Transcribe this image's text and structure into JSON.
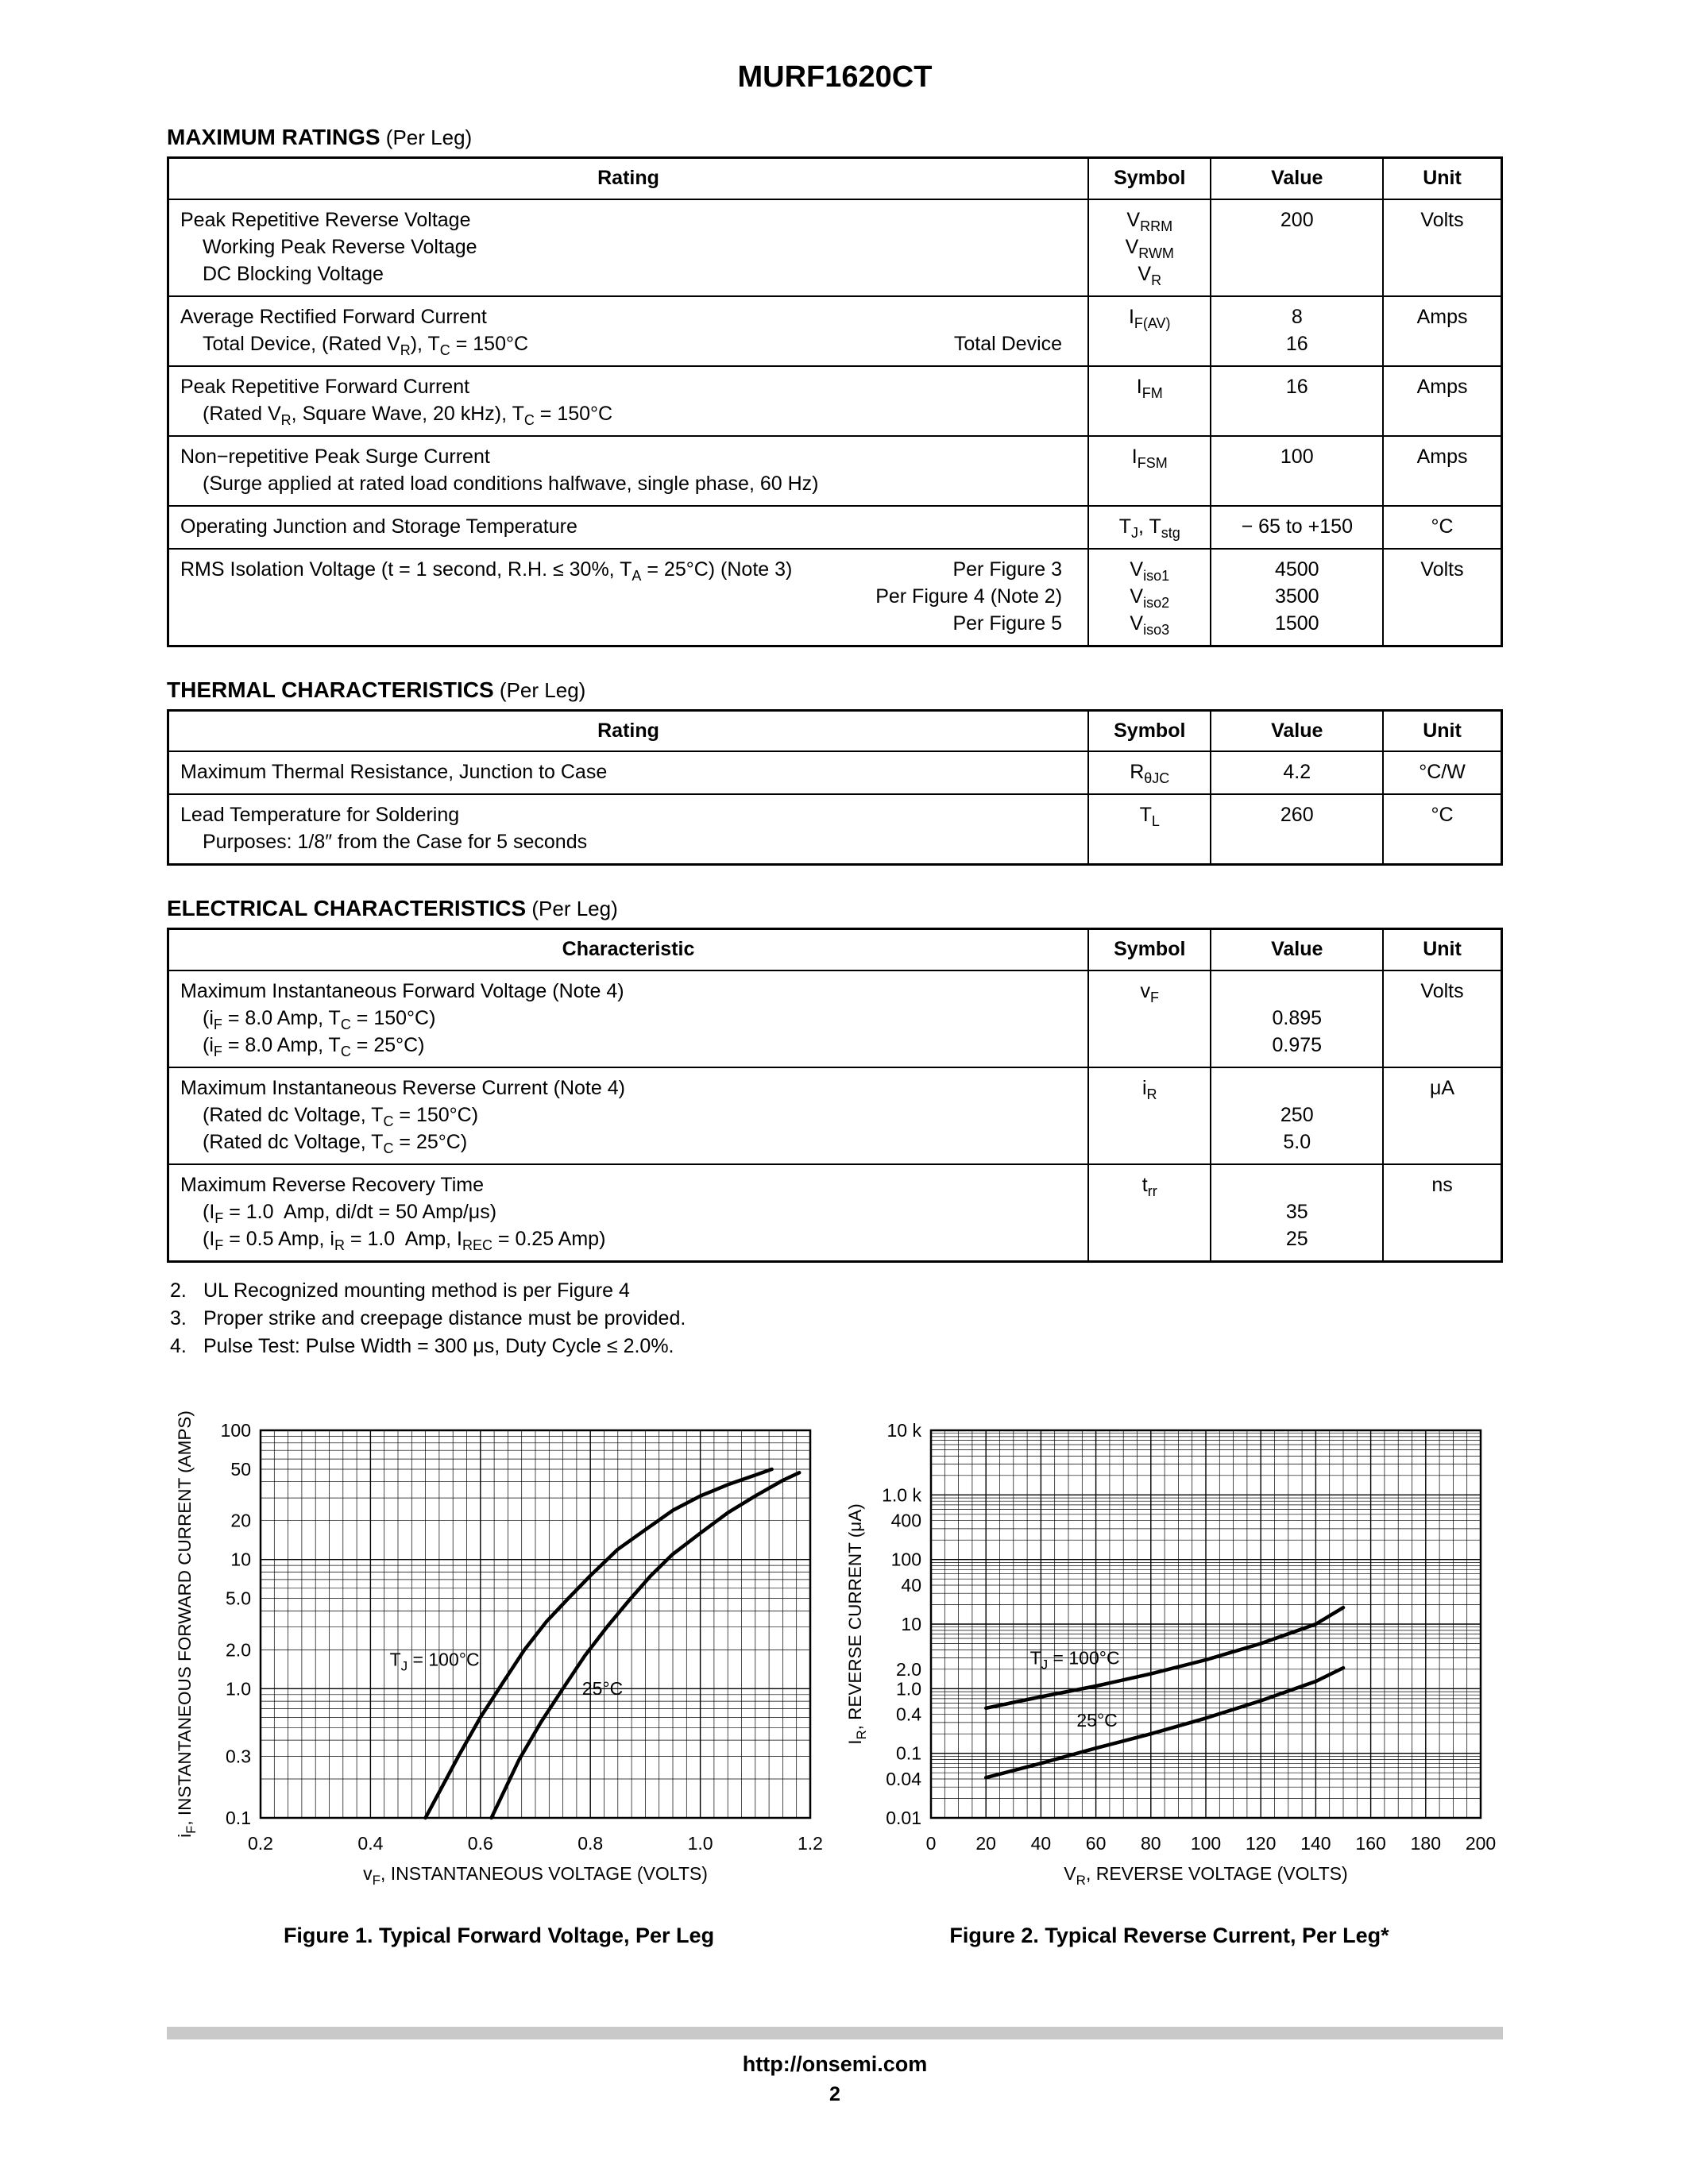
{
  "page": {
    "title": "MURF1620CT",
    "footer": {
      "url": "http://onsemi.com",
      "page": "2"
    }
  },
  "sections": {
    "max_ratings": {
      "title": "MAXIMUM RATINGS",
      "title_suffix": " (Per Leg)",
      "columns": [
        "Rating",
        "Symbol",
        "Value",
        "Unit"
      ],
      "rows": [
        {
          "rating": [
            {
              "l": "Peak Repetitive Reverse Voltage"
            },
            {
              "l": "Working Peak Reverse Voltage",
              "ind": true
            },
            {
              "l": "DC Blocking Voltage",
              "ind": true
            }
          ],
          "symbol": [
            "V<sub>RRM</sub>",
            "V<sub>RWM</sub>",
            "V<sub>R</sub>"
          ],
          "value": [
            "200"
          ],
          "unit": [
            "Volts"
          ]
        },
        {
          "rating": [
            {
              "l": "Average Rectified Forward Current"
            },
            {
              "l": "Total Device, (Rated V<sub>R</sub>), T<sub>C</sub> = 150°C",
              "ind": true,
              "r": "Total Device"
            }
          ],
          "symbol": [
            "I<sub>F(AV)</sub>"
          ],
          "value": [
            "8",
            "16"
          ],
          "unit": [
            "Amps"
          ]
        },
        {
          "rating": [
            {
              "l": "Peak Repetitive Forward Current"
            },
            {
              "l": "(Rated V<sub>R</sub>, Square Wave, 20 kHz), T<sub>C</sub> = 150°C",
              "ind": true
            }
          ],
          "symbol": [
            "I<sub>FM</sub>"
          ],
          "value": [
            "16"
          ],
          "unit": [
            "Amps"
          ]
        },
        {
          "rating": [
            {
              "l": "Non−repetitive Peak Surge Current"
            },
            {
              "l": "(Surge applied at rated load conditions halfwave, single phase, 60 Hz)",
              "ind": true
            }
          ],
          "symbol": [
            "I<sub>FSM</sub>"
          ],
          "value": [
            "100"
          ],
          "unit": [
            "Amps"
          ]
        },
        {
          "rating": [
            {
              "l": "Operating Junction and Storage Temperature"
            }
          ],
          "symbol": [
            "T<sub>J</sub>, T<sub>stg</sub>"
          ],
          "value": [
            "− 65 to +150"
          ],
          "unit": [
            "°C"
          ]
        },
        {
          "rating": [
            {
              "l": "RMS Isolation Voltage (t = 1 second, R.H. ≤ 30%, T<sub>A</sub> = 25°C) (Note 3)",
              "r": "Per Figure 3"
            },
            {
              "r": "Per Figure 4 (Note 2)"
            },
            {
              "r": "Per Figure 5"
            }
          ],
          "symbol": [
            "V<sub>iso1</sub>",
            "V<sub>iso2</sub>",
            "V<sub>iso3</sub>"
          ],
          "value": [
            "4500",
            "3500",
            "1500"
          ],
          "unit": [
            "Volts"
          ]
        }
      ]
    },
    "thermal": {
      "title": "THERMAL CHARACTERISTICS",
      "title_suffix": " (Per Leg)",
      "columns": [
        "Rating",
        "Symbol",
        "Value",
        "Unit"
      ],
      "rows": [
        {
          "rating": [
            {
              "l": "Maximum Thermal Resistance, Junction to Case"
            }
          ],
          "symbol": [
            "R<sub>θJC</sub>"
          ],
          "value": [
            "4.2"
          ],
          "unit": [
            "°C/W"
          ]
        },
        {
          "rating": [
            {
              "l": "Lead Temperature for Soldering"
            },
            {
              "l": "Purposes: 1/8″ from the Case for 5 seconds",
              "ind": true
            }
          ],
          "symbol": [
            "T<sub>L</sub>"
          ],
          "value": [
            "260"
          ],
          "unit": [
            "°C"
          ]
        }
      ]
    },
    "electrical": {
      "title": "ELECTRICAL CHARACTERISTICS",
      "title_suffix": " (Per Leg)",
      "columns": [
        "Characteristic",
        "Symbol",
        "Value",
        "Unit"
      ],
      "rows": [
        {
          "rating": [
            {
              "l": "Maximum Instantaneous Forward Voltage (Note 4)"
            },
            {
              "l": "(i<sub>F</sub> = 8.0 Amp, T<sub>C</sub> = 150°C)",
              "ind": true
            },
            {
              "l": "(i<sub>F</sub> = 8.0 Amp, T<sub>C</sub> = 25°C)",
              "ind": true
            }
          ],
          "symbol": [
            "v<sub>F</sub>"
          ],
          "value": [
            "",
            "0.895",
            "0.975"
          ],
          "unit": [
            "Volts"
          ]
        },
        {
          "rating": [
            {
              "l": "Maximum Instantaneous Reverse Current (Note 4)"
            },
            {
              "l": "(Rated dc Voltage, T<sub>C</sub> = 150°C)",
              "ind": true
            },
            {
              "l": "(Rated dc Voltage, T<sub>C</sub> = 25°C)",
              "ind": true
            }
          ],
          "symbol": [
            "i<sub>R</sub>"
          ],
          "value": [
            "",
            "250",
            "5.0"
          ],
          "unit": [
            "μA"
          ]
        },
        {
          "rating": [
            {
              "l": "Maximum Reverse Recovery Time"
            },
            {
              "l": "(I<sub>F</sub> = 1.0&nbsp; Amp, di/dt = 50 Amp/μs)",
              "ind": true
            },
            {
              "l": "(I<sub>F</sub> = 0.5 Amp, i<sub>R</sub> = 1.0&nbsp; Amp, I<sub>REC</sub> = 0.25 Amp)",
              "ind": true
            }
          ],
          "symbol": [
            "t<sub>rr</sub>"
          ],
          "value": [
            "",
            "35",
            "25"
          ],
          "unit": [
            "ns"
          ]
        }
      ]
    }
  },
  "notes": [
    {
      "num": "2.",
      "html": "UL Recognized mounting method is per Figure 4"
    },
    {
      "num": "3.",
      "html": "Proper strike and creepage distance must be provided."
    },
    {
      "num": "4.",
      "html": "Pulse Test: Pulse Width = 300 μs, Duty Cycle ≤ 2.0%."
    }
  ],
  "chart_data": [
    {
      "type": "line",
      "name": "figure-1-chart",
      "title": "Figure 1. Typical Forward Voltage, Per Leg",
      "xlabel": "vF, INSTANTANEOUS VOLTAGE (VOLTS)",
      "ylabel": "iF, INSTANTANEOUS FORWARD CURRENT (AMPS)",
      "xlabel_parts": [
        {
          "t": "v"
        },
        {
          "t": "F",
          "sub": true
        },
        {
          "t": ", INSTANTANEOUS VOLTAGE (VOLTS)"
        }
      ],
      "ylabel_parts": [
        {
          "t": "i"
        },
        {
          "t": "F",
          "sub": true
        },
        {
          "t": ", INSTANTANEOUS FORWARD CURRENT (AMPS)"
        }
      ],
      "x_scale": "linear",
      "x_range": [
        0.2,
        1.2
      ],
      "x_minor_step": 0.025,
      "x_ticks": [
        0.2,
        0.4,
        0.6,
        0.8,
        1.0,
        1.2
      ],
      "x_tick_labels": [
        "0.2",
        "0.4",
        "0.6",
        "0.8",
        "1.0",
        "1.2"
      ],
      "y_scale": "log",
      "y_range": [
        0.1,
        100
      ],
      "y_ticks": [
        100,
        50,
        20,
        10,
        5.0,
        2.0,
        1.0,
        0.3,
        0.1
      ],
      "y_tick_labels": [
        "100",
        "50",
        "20",
        "10",
        "5.0",
        "2.0",
        "1.0",
        "0.3",
        "0.1"
      ],
      "grid": true,
      "series": [
        {
          "name": "TJ = 100°C",
          "label_parts": [
            {
              "t": "T"
            },
            {
              "t": "J",
              "sub": true
            },
            {
              "t": " = 100°C"
            }
          ],
          "label_at": [
            0.435,
            1.5
          ],
          "points": [
            [
              0.5,
              0.1
            ],
            [
              0.56,
              0.3
            ],
            [
              0.6,
              0.6
            ],
            [
              0.64,
              1.1
            ],
            [
              0.68,
              2.0
            ],
            [
              0.72,
              3.3
            ],
            [
              0.76,
              5.0
            ],
            [
              0.8,
              7.5
            ],
            [
              0.85,
              12
            ],
            [
              0.9,
              17
            ],
            [
              0.95,
              24
            ],
            [
              1.0,
              31
            ],
            [
              1.05,
              38
            ],
            [
              1.1,
              45
            ],
            [
              1.13,
              50
            ]
          ]
        },
        {
          "name": "25°C",
          "label_parts": [
            {
              "t": "25°C"
            }
          ],
          "label_at": [
            0.785,
            0.9
          ],
          "points": [
            [
              0.62,
              0.1
            ],
            [
              0.67,
              0.28
            ],
            [
              0.71,
              0.55
            ],
            [
              0.75,
              1.0
            ],
            [
              0.79,
              1.8
            ],
            [
              0.83,
              3.0
            ],
            [
              0.87,
              4.8
            ],
            [
              0.91,
              7.5
            ],
            [
              0.95,
              11
            ],
            [
              1.0,
              16
            ],
            [
              1.05,
              23
            ],
            [
              1.1,
              31
            ],
            [
              1.15,
              41
            ],
            [
              1.18,
              47
            ]
          ]
        }
      ]
    },
    {
      "type": "line",
      "name": "figure-2-chart",
      "title": "Figure 2. Typical Reverse Current, Per Leg*",
      "xlabel": "VR, REVERSE VOLTAGE (VOLTS)",
      "ylabel": "IR, REVERSE CURRENT (μA)",
      "xlabel_parts": [
        {
          "t": "V"
        },
        {
          "t": "R",
          "sub": true
        },
        {
          "t": ", REVERSE VOLTAGE (VOLTS)"
        }
      ],
      "ylabel_parts": [
        {
          "t": "I"
        },
        {
          "t": "R",
          "sub": true
        },
        {
          "t": ", REVERSE CURRENT (μA)"
        }
      ],
      "x_scale": "linear",
      "x_range": [
        0,
        200
      ],
      "x_minor_step": 5,
      "x_ticks": [
        0,
        20,
        40,
        60,
        80,
        100,
        120,
        140,
        160,
        180,
        200
      ],
      "x_tick_labels": [
        "0",
        "20",
        "40",
        "60",
        "80",
        "100",
        "120",
        "140",
        "160",
        "180",
        "200"
      ],
      "y_scale": "log",
      "y_range": [
        0.01,
        10000
      ],
      "y_ticks": [
        10000,
        1000,
        400,
        100,
        40,
        10,
        2.0,
        1.0,
        0.4,
        0.1,
        0.04,
        0.01
      ],
      "y_tick_labels": [
        "10 k",
        "1.0 k",
        "400",
        "100",
        "40",
        "10",
        "2.0",
        "1.0",
        "0.4",
        "0.1",
        "0.04",
        "0.01"
      ],
      "grid": true,
      "series": [
        {
          "name": "TJ = 100°C",
          "label_parts": [
            {
              "t": "T"
            },
            {
              "t": "J",
              "sub": true
            },
            {
              "t": " = 100°C"
            }
          ],
          "label_at": [
            36,
            2.4
          ],
          "points": [
            [
              20,
              0.5
            ],
            [
              40,
              0.75
            ],
            [
              60,
              1.1
            ],
            [
              80,
              1.7
            ],
            [
              100,
              2.8
            ],
            [
              120,
              5.0
            ],
            [
              140,
              10
            ],
            [
              150,
              18
            ]
          ]
        },
        {
          "name": "25°C",
          "label_parts": [
            {
              "t": "25°C"
            }
          ],
          "label_at": [
            53,
            0.26
          ],
          "points": [
            [
              20,
              0.042
            ],
            [
              40,
              0.07
            ],
            [
              60,
              0.12
            ],
            [
              80,
              0.2
            ],
            [
              100,
              0.35
            ],
            [
              120,
              0.65
            ],
            [
              140,
              1.3
            ],
            [
              150,
              2.1
            ]
          ]
        }
      ]
    }
  ]
}
